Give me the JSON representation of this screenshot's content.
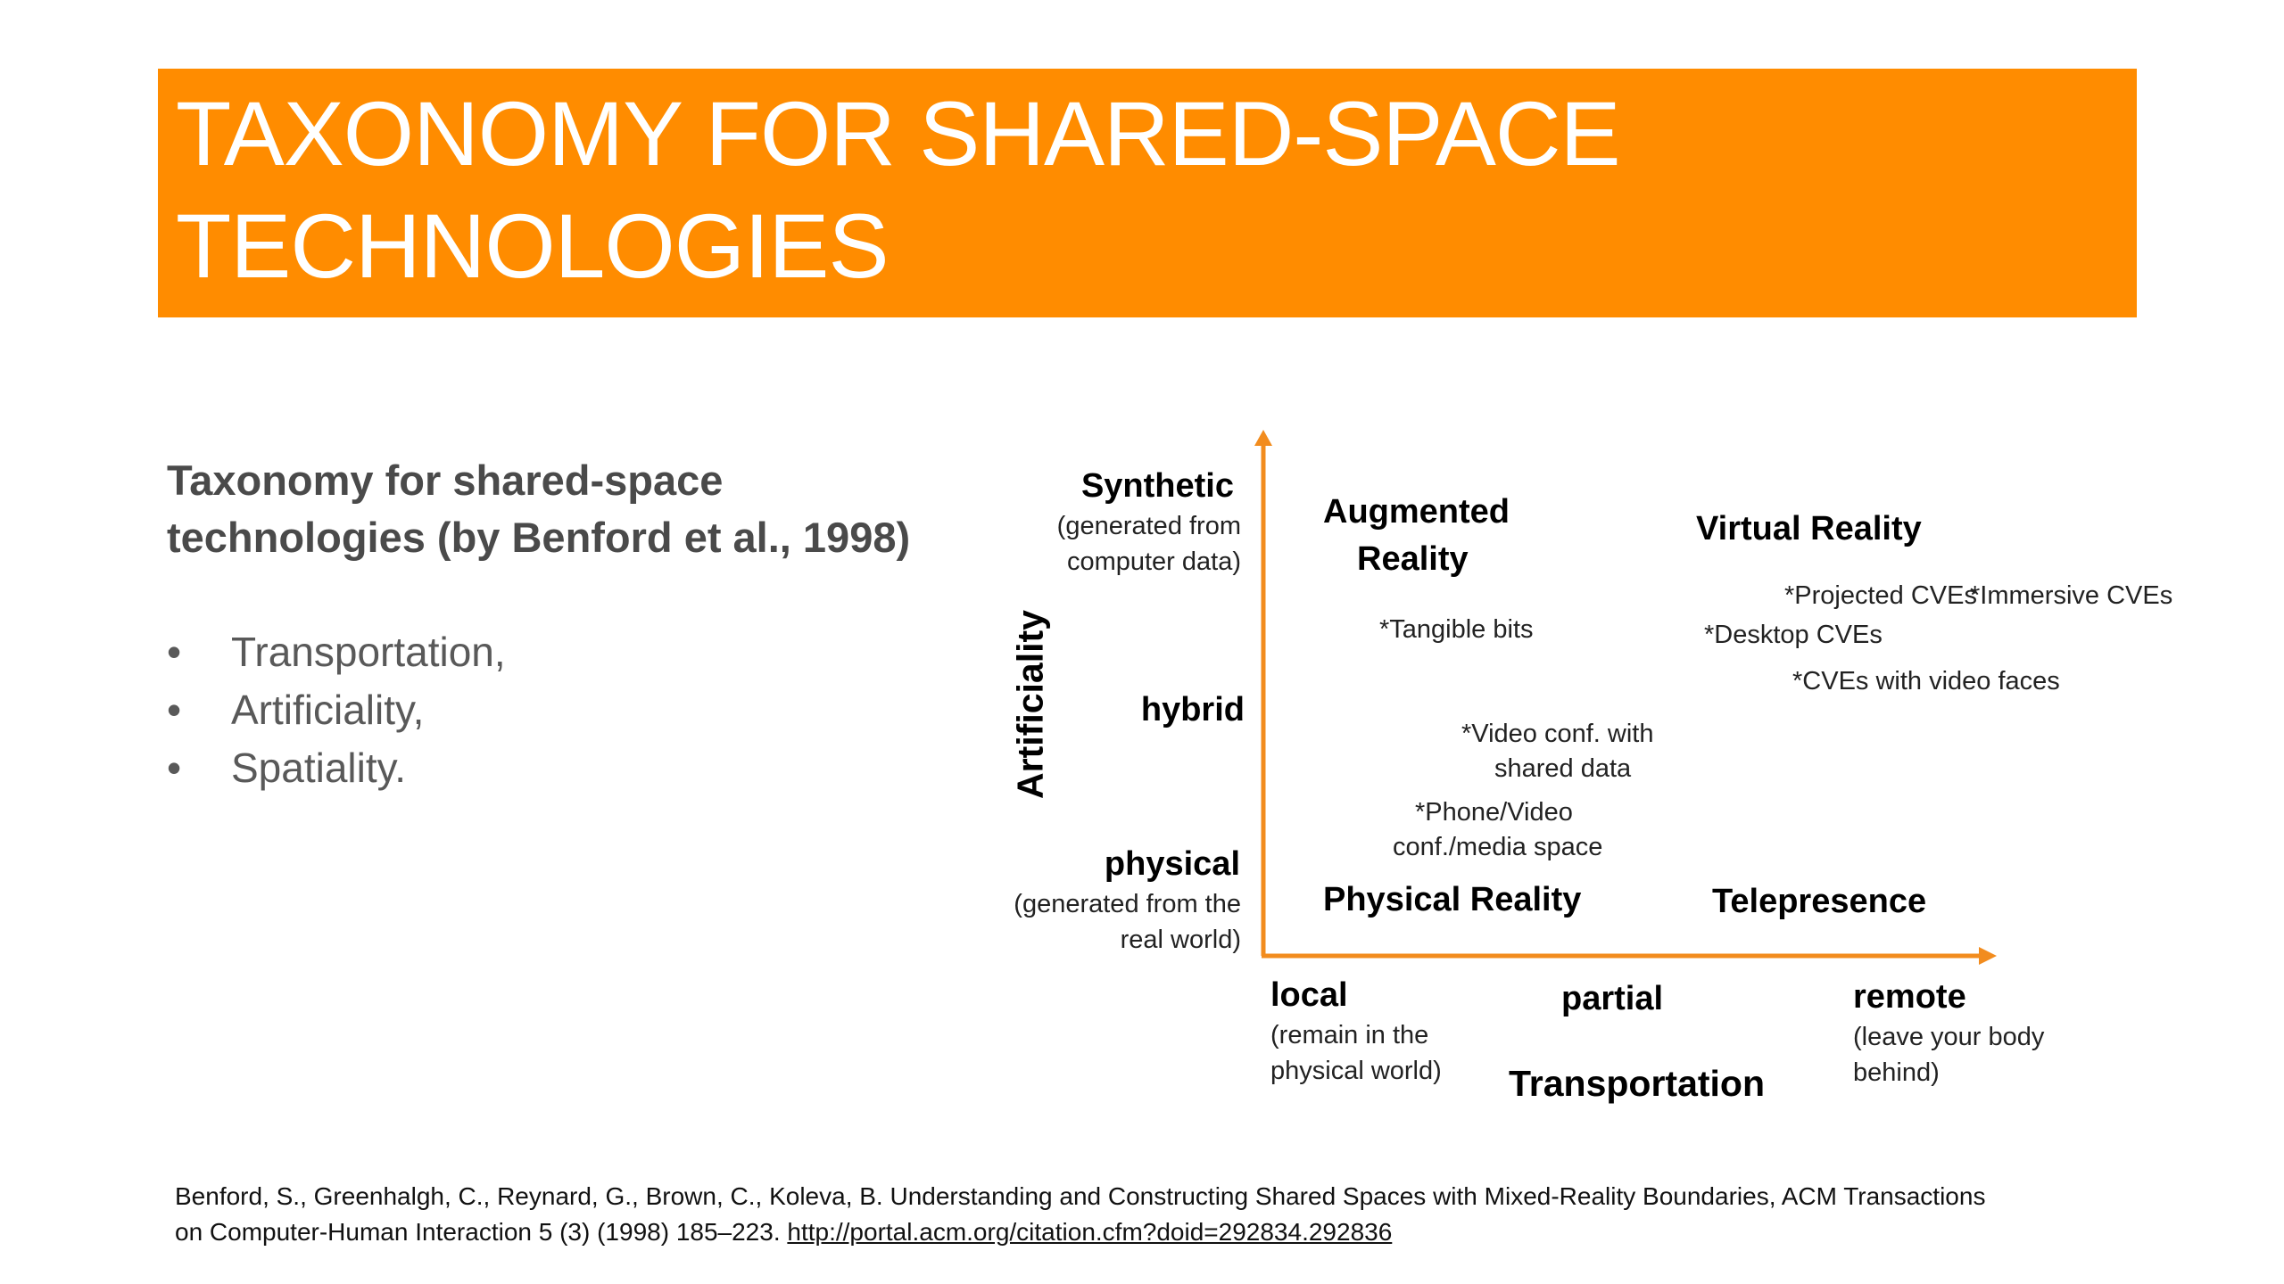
{
  "title": {
    "line1": "TAXONOMY FOR SHARED-SPACE",
    "line2": "TECHNOLOGIES"
  },
  "subtitle": {
    "line1": "Taxonomy for shared-space",
    "line2": "technologies (by Benford et al., 1998)"
  },
  "bullets": [
    "Transportation,",
    "Artificiality,",
    "Spatiality."
  ],
  "bullet_glyph": "•",
  "diagram": {
    "y_axis_title": "Artificiality",
    "x_axis_title": "Transportation",
    "y_levels": {
      "synthetic": "Synthetic",
      "synthetic_note_1": "(generated from",
      "synthetic_note_2": "computer data)",
      "hybrid": "hybrid",
      "physical": "physical",
      "physical_note_1": "(generated from the",
      "physical_note_2": "real world)"
    },
    "x_levels": {
      "local": "local",
      "local_note_1": "(remain in the",
      "local_note_2": "physical world)",
      "partial": "partial",
      "remote": "remote",
      "remote_note_1": "(leave your body",
      "remote_note_2": "behind)"
    },
    "quadrants": {
      "augmented_1": "Augmented",
      "augmented_2": "Reality",
      "virtual": "Virtual Reality",
      "physical": "Physical Reality",
      "telepresence": "Telepresence"
    },
    "examples": {
      "tangible": "*Tangible bits",
      "projected": "*Projected  CVEs",
      "immersive": "*Immersive CVEs",
      "desktop": "*Desktop  CVEs",
      "video_faces": "*CVEs with video faces",
      "video_conf_1": "*Video conf. with",
      "video_conf_2": "shared data",
      "phone_1": "*Phone/Video",
      "phone_2": "conf./media space"
    },
    "axis_color": "#f28c1e"
  },
  "reference": {
    "line1": "Benford, S., Greenhalgh, C., Reynard, G., Brown, C., Koleva, B. Understanding and Constructing Shared Spaces with Mixed-Reality Boundaries, ACM Transactions",
    "line2_prefix": "on Computer-Human Interaction 5 (3) (1998) 185–223. ",
    "link": "http://portal.acm.org/citation.cfm?doid=292834.292836"
  }
}
